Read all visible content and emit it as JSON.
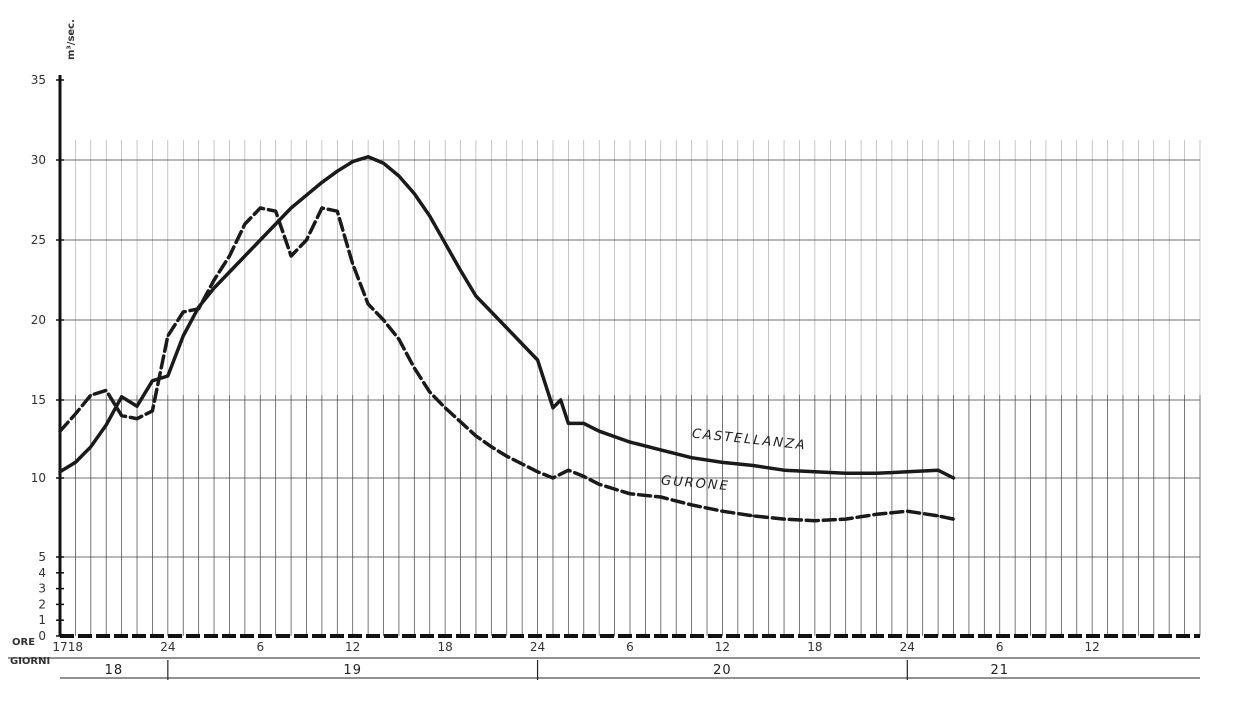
{
  "chart_data": {
    "type": "line",
    "ylabel": "m³/sec.",
    "ylim": [
      0,
      35
    ],
    "y_ticks": [
      0,
      1,
      2,
      3,
      4,
      5,
      10,
      15,
      20,
      25,
      30,
      35
    ],
    "x_unit": "hours",
    "xlim": [
      17,
      91
    ],
    "row_labels": {
      "hours": "ORE",
      "days": "GIORNI"
    },
    "x_ticks": [
      {
        "x": 17,
        "label": "17"
      },
      {
        "x": 18,
        "label": "18"
      },
      {
        "x": 24,
        "label": "24"
      },
      {
        "x": 30,
        "label": "6"
      },
      {
        "x": 36,
        "label": "12"
      },
      {
        "x": 42,
        "label": "18"
      },
      {
        "x": 48,
        "label": "24"
      },
      {
        "x": 54,
        "label": "6"
      },
      {
        "x": 60,
        "label": "12"
      },
      {
        "x": 66,
        "label": "18"
      },
      {
        "x": 72,
        "label": "24"
      },
      {
        "x": 78,
        "label": "6"
      },
      {
        "x": 84,
        "label": "12"
      }
    ],
    "days": [
      {
        "label": "18",
        "start": 17,
        "end": 24
      },
      {
        "label": "19",
        "start": 24,
        "end": 48
      },
      {
        "label": "20",
        "start": 48,
        "end": 72
      },
      {
        "label": "21",
        "start": 72,
        "end": 84
      }
    ],
    "series": [
      {
        "name": "CASTELLANZA",
        "style": "solid",
        "points": [
          [
            17,
            10.4
          ],
          [
            18,
            11.0
          ],
          [
            19,
            12.0
          ],
          [
            20,
            13.4
          ],
          [
            21,
            15.2
          ],
          [
            22,
            14.6
          ],
          [
            23,
            16.2
          ],
          [
            24,
            16.5
          ],
          [
            25,
            19.0
          ],
          [
            26,
            20.8
          ],
          [
            27,
            22.0
          ],
          [
            28,
            23.0
          ],
          [
            29,
            24.0
          ],
          [
            30,
            25.0
          ],
          [
            31,
            26.0
          ],
          [
            32,
            27.0
          ],
          [
            33,
            27.8
          ],
          [
            34,
            28.6
          ],
          [
            35,
            29.3
          ],
          [
            36,
            29.9
          ],
          [
            37,
            30.2
          ],
          [
            38,
            29.8
          ],
          [
            39,
            29.0
          ],
          [
            40,
            27.9
          ],
          [
            41,
            26.5
          ],
          [
            42,
            24.8
          ],
          [
            43,
            23.1
          ],
          [
            44,
            21.5
          ],
          [
            45,
            20.5
          ],
          [
            46,
            19.5
          ],
          [
            47,
            18.5
          ],
          [
            48,
            17.5
          ],
          [
            49,
            14.5
          ],
          [
            49.5,
            15.0
          ],
          [
            50,
            13.5
          ],
          [
            51,
            13.5
          ],
          [
            52,
            13.0
          ],
          [
            54,
            12.3
          ],
          [
            56,
            11.8
          ],
          [
            58,
            11.3
          ],
          [
            60,
            11.0
          ],
          [
            62,
            10.8
          ],
          [
            64,
            10.5
          ],
          [
            66,
            10.4
          ],
          [
            68,
            10.3
          ],
          [
            70,
            10.3
          ],
          [
            72,
            10.4
          ],
          [
            74,
            10.5
          ],
          [
            75,
            10.0
          ]
        ]
      },
      {
        "name": "GURONE",
        "style": "dashed",
        "points": [
          [
            17,
            13.0
          ],
          [
            18,
            14.1
          ],
          [
            19,
            15.3
          ],
          [
            20,
            15.6
          ],
          [
            21,
            14.0
          ],
          [
            22,
            13.8
          ],
          [
            23,
            14.3
          ],
          [
            24,
            19.0
          ],
          [
            25,
            20.5
          ],
          [
            26,
            20.7
          ],
          [
            27,
            22.5
          ],
          [
            28,
            24.0
          ],
          [
            29,
            26.0
          ],
          [
            30,
            27.0
          ],
          [
            31,
            26.8
          ],
          [
            32,
            24.0
          ],
          [
            33,
            25.0
          ],
          [
            34,
            27.0
          ],
          [
            35,
            26.8
          ],
          [
            36,
            23.5
          ],
          [
            37,
            21.0
          ],
          [
            38,
            20.0
          ],
          [
            39,
            18.8
          ],
          [
            40,
            17.0
          ],
          [
            41,
            15.5
          ],
          [
            42,
            14.5
          ],
          [
            43,
            13.6
          ],
          [
            44,
            12.7
          ],
          [
            45,
            12.0
          ],
          [
            46,
            11.4
          ],
          [
            47,
            10.9
          ],
          [
            48,
            10.4
          ],
          [
            49,
            10.0
          ],
          [
            50,
            10.5
          ],
          [
            51,
            10.1
          ],
          [
            52,
            9.6
          ],
          [
            54,
            9.0
          ],
          [
            56,
            8.8
          ],
          [
            58,
            8.3
          ],
          [
            60,
            7.9
          ],
          [
            62,
            7.6
          ],
          [
            64,
            7.4
          ],
          [
            66,
            7.3
          ],
          [
            68,
            7.4
          ],
          [
            70,
            7.7
          ],
          [
            72,
            7.9
          ],
          [
            74,
            7.6
          ],
          [
            75,
            7.4
          ]
        ]
      }
    ],
    "grid": true
  }
}
